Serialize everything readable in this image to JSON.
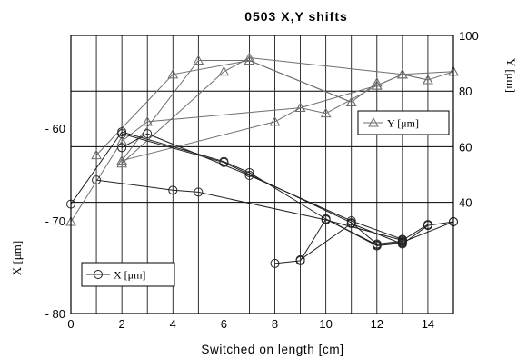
{
  "chart_data": {
    "type": "line",
    "title": "0503 X,Y shifts",
    "xlabel": "Switched on length [cm]",
    "ylabel_left": "X [μm]",
    "ylabel_right": "Y [μm]",
    "xlim": [
      0,
      15
    ],
    "x_ticks": [
      0,
      2,
      4,
      6,
      8,
      10,
      12,
      14
    ],
    "x_tick_labels": [
      "0",
      "2",
      "4",
      "6",
      "8",
      "10",
      "12",
      "14"
    ],
    "y_left_lim": [
      -80,
      -50
    ],
    "y_left_ticks": [
      -80,
      -70,
      -60
    ],
    "y_left_tick_labels": [
      "- 80",
      "- 70",
      "- 60"
    ],
    "y_right_lim": [
      0,
      100
    ],
    "y_right_ticks": [
      40,
      60,
      80,
      100
    ],
    "y_right_tick_labels": [
      "40",
      "60",
      "80",
      "100"
    ],
    "grid": true,
    "series": [
      {
        "name": "Y [μm]",
        "axis": "right",
        "marker": "triangle",
        "color": "#6e6e6e",
        "runs": [
          [
            [
              0,
              33
            ],
            [
              2,
              62
            ],
            [
              3,
              69
            ],
            [
              9,
              74
            ],
            [
              10,
              72
            ],
            [
              12,
              82
            ],
            [
              13,
              86
            ],
            [
              14,
              84
            ],
            [
              15,
              87
            ]
          ],
          [
            [
              1,
              57
            ],
            [
              4,
              86
            ],
            [
              7,
              91
            ],
            [
              11,
              76
            ],
            [
              12,
              83
            ]
          ],
          [
            [
              2,
              55
            ],
            [
              5,
              91
            ],
            [
              7,
              91
            ],
            [
              11,
              76
            ]
          ],
          [
            [
              2,
              54
            ],
            [
              6,
              87
            ],
            [
              7,
              92
            ],
            [
              13,
              86
            ],
            [
              15,
              87
            ]
          ],
          [
            [
              2,
              55
            ],
            [
              8,
              69
            ],
            [
              9,
              74
            ],
            [
              12,
              82
            ],
            [
              13,
              86
            ],
            [
              14,
              84
            ]
          ]
        ]
      },
      {
        "name": "X [μm]",
        "axis": "left",
        "marker": "circle",
        "color": "#222222",
        "runs": [
          [
            [
              0,
              -68.2
            ],
            [
              2,
              -60.4
            ],
            [
              6,
              -63.6
            ],
            [
              7,
              -64.8
            ],
            [
              10,
              -69.8
            ],
            [
              12,
              -72.6
            ],
            [
              13,
              -72.3
            ],
            [
              15,
              -70.1
            ]
          ],
          [
            [
              1,
              -65.6
            ],
            [
              4,
              -66.7
            ],
            [
              5,
              -66.9
            ],
            [
              10,
              -69.9
            ],
            [
              13,
              -72.1
            ],
            [
              14,
              -70.4
            ]
          ],
          [
            [
              2,
              -62.1
            ],
            [
              3,
              -60.6
            ],
            [
              7,
              -65.1
            ],
            [
              11,
              -70.0
            ],
            [
              13,
              -72.0
            ]
          ],
          [
            [
              2,
              -60.6
            ],
            [
              6,
              -63.7
            ],
            [
              11,
              -70.2
            ],
            [
              12,
              -72.5
            ],
            [
              13,
              -72.2
            ]
          ],
          [
            [
              8,
              -74.6
            ],
            [
              9,
              -74.3
            ],
            [
              10,
              -69.8
            ],
            [
              12,
              -72.7
            ],
            [
              13,
              -72.4
            ]
          ],
          [
            [
              9,
              -74.2
            ],
            [
              11,
              -70.3
            ],
            [
              13,
              -72.5
            ],
            [
              14,
              -70.5
            ],
            [
              15,
              -70.1
            ]
          ]
        ]
      }
    ],
    "legend": [
      {
        "label": "Y [μm]",
        "marker": "triangle",
        "placement": "right-middle"
      },
      {
        "label": "X [μm]",
        "marker": "circle",
        "placement": "left-bottom"
      }
    ]
  }
}
